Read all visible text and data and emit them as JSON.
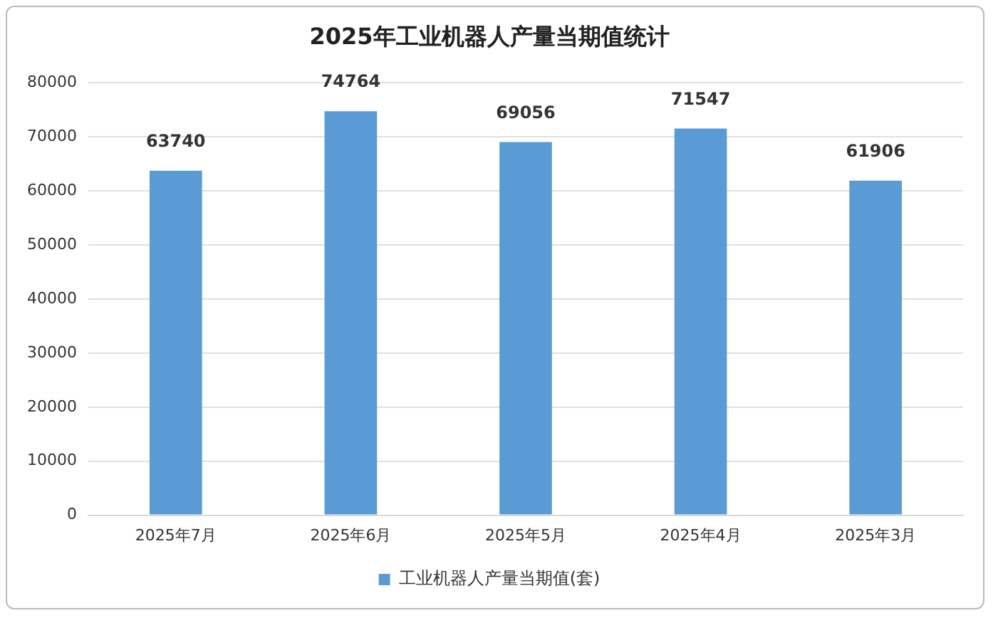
{
  "chart_data": {
    "type": "bar",
    "title": "2025年工业机器人产量当期值统计",
    "categories": [
      "2025年7月",
      "2025年6月",
      "2025年5月",
      "2025年4月",
      "2025年3月"
    ],
    "series": [
      {
        "name": "工业机器人产量当期值(套)",
        "color": "#5b9bd5",
        "values": [
          63740,
          74764,
          69056,
          71547,
          61906
        ]
      }
    ],
    "ylim": [
      0,
      80000
    ],
    "yticks": [
      0,
      10000,
      20000,
      30000,
      40000,
      50000,
      60000,
      70000,
      80000
    ],
    "grid": "y",
    "legend": "bottom",
    "data_labels": true
  }
}
